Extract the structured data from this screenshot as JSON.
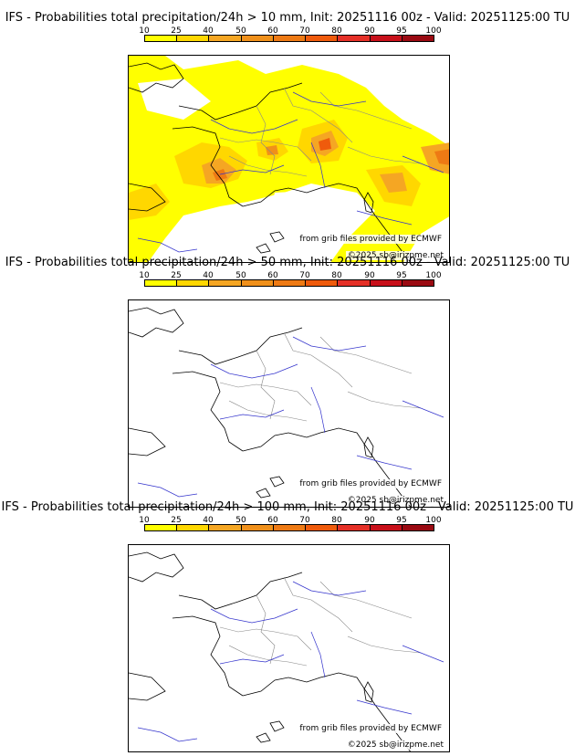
{
  "legend": {
    "ticks": [
      "10",
      "25",
      "40",
      "50",
      "60",
      "70",
      "80",
      "90",
      "95",
      "100"
    ],
    "colors": [
      "#ffff00",
      "#ffd700",
      "#f5a623",
      "#f0901a",
      "#ee7a14",
      "#ef5b0c",
      "#e53027",
      "#c8101a",
      "#9a0a12",
      "#5a0008"
    ]
  },
  "panels": [
    {
      "title": "IFS - Probabilities total precipitation/24h > 10 mm, Init: 20251116 00z - Valid: 20251125:00 TU",
      "credit": "from grib files provided by ECMWF",
      "copyright": "©2025 sb@irizpme.net"
    },
    {
      "title": "IFS - Probabilities total precipitation/24h > 50 mm, Init: 20251116 00z - Valid: 20251125:00 TU",
      "credit": "from grib files provided by ECMWF",
      "copyright": "©2025 sb@irizpme.net"
    },
    {
      "title": "IFS - Probabilities total precipitation/24h > 100 mm, Init: 20251116 00z - Valid: 20251125:00 TU",
      "credit": "from grib files provided by ECMWF",
      "copyright": "©2025 sb@irizpme.net"
    }
  ]
}
